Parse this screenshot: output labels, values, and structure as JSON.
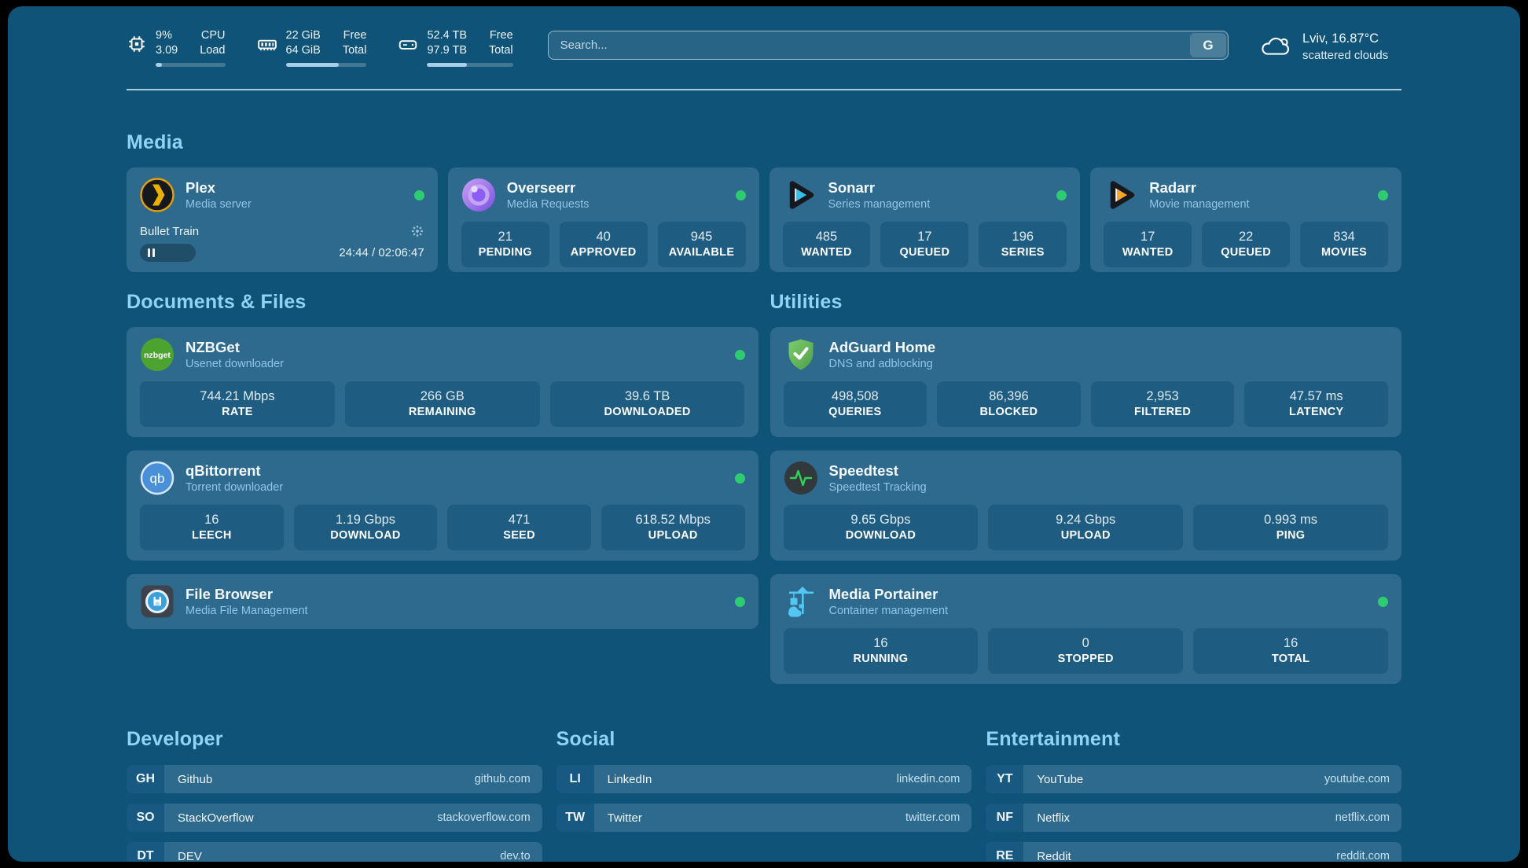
{
  "header": {
    "stats": [
      {
        "icon": "cpu-icon",
        "value1": "9%",
        "value2": "3.09",
        "label1": "CPU",
        "label2": "Load",
        "progress": 9
      },
      {
        "icon": "ram-icon",
        "value1": "22 GiB",
        "value2": "64 GiB",
        "label1": "Free",
        "label2": "Total",
        "progress": 66
      },
      {
        "icon": "disk-icon",
        "value1": "52.4 TB",
        "value2": "97.9 TB",
        "label1": "Free",
        "label2": "Total",
        "progress": 46
      }
    ],
    "search": {
      "placeholder": "Search...",
      "button": "G"
    },
    "weather": {
      "location": "Lviv, 16.87°C",
      "condition": "scattered clouds",
      "icon": "cloud-icon"
    }
  },
  "media": {
    "title": "Media",
    "plex": {
      "title": "Plex",
      "subtitle": "Media server",
      "icon": "plex-icon",
      "status": "online",
      "player": {
        "track": "Bullet Train",
        "time": "24:44 / 02:06:47",
        "progress": 19.5
      }
    },
    "overseerr": {
      "title": "Overseerr",
      "subtitle": "Media Requests",
      "icon": "overseerr-icon",
      "status": "online",
      "stats": [
        {
          "value": "21",
          "label": "PENDING"
        },
        {
          "value": "40",
          "label": "APPROVED"
        },
        {
          "value": "945",
          "label": "AVAILABLE"
        }
      ]
    },
    "sonarr": {
      "title": "Sonarr",
      "subtitle": "Series management",
      "icon": "sonarr-icon",
      "status": "online",
      "stats": [
        {
          "value": "485",
          "label": "WANTED"
        },
        {
          "value": "17",
          "label": "QUEUED"
        },
        {
          "value": "196",
          "label": "SERIES"
        }
      ]
    },
    "radarr": {
      "title": "Radarr",
      "subtitle": "Movie management",
      "icon": "radarr-icon",
      "status": "online",
      "stats": [
        {
          "value": "17",
          "label": "WANTED"
        },
        {
          "value": "22",
          "label": "QUEUED"
        },
        {
          "value": "834",
          "label": "MOVIES"
        }
      ]
    }
  },
  "documents": {
    "title": "Documents & Files",
    "nzbget": {
      "title": "NZBGet",
      "subtitle": "Usenet downloader",
      "icon": "nzbget-icon",
      "status": "online",
      "stats": [
        {
          "value": "744.21 Mbps",
          "label": "RATE"
        },
        {
          "value": "266 GB",
          "label": "REMAINING"
        },
        {
          "value": "39.6 TB",
          "label": "DOWNLOADED"
        }
      ]
    },
    "qbittorrent": {
      "title": "qBittorrent",
      "subtitle": "Torrent downloader",
      "icon": "qbittorrent-icon",
      "status": "online",
      "stats": [
        {
          "value": "16",
          "label": "LEECH"
        },
        {
          "value": "1.19 Gbps",
          "label": "DOWNLOAD"
        },
        {
          "value": "471",
          "label": "SEED"
        },
        {
          "value": "618.52 Mbps",
          "label": "UPLOAD"
        }
      ]
    },
    "filebrowser": {
      "title": "File Browser",
      "subtitle": "Media File Management",
      "icon": "filebrowser-icon",
      "status": "online"
    }
  },
  "utilities": {
    "title": "Utilities",
    "adguard": {
      "title": "AdGuard Home",
      "subtitle": "DNS and adblocking",
      "icon": "adguard-icon",
      "stats": [
        {
          "value": "498,508",
          "label": "QUERIES"
        },
        {
          "value": "86,396",
          "label": "BLOCKED"
        },
        {
          "value": "2,953",
          "label": "FILTERED"
        },
        {
          "value": "47.57 ms",
          "label": "LATENCY"
        }
      ]
    },
    "speedtest": {
      "title": "Speedtest",
      "subtitle": "Speedtest Tracking",
      "icon": "speedtest-icon",
      "stats": [
        {
          "value": "9.65 Gbps",
          "label": "DOWNLOAD"
        },
        {
          "value": "9.24 Gbps",
          "label": "UPLOAD"
        },
        {
          "value": "0.993 ms",
          "label": "PING"
        }
      ]
    },
    "portainer": {
      "title": "Media Portainer",
      "subtitle": "Container management",
      "icon": "portainer-icon",
      "status": "online",
      "stats": [
        {
          "value": "16",
          "label": "RUNNING"
        },
        {
          "value": "0",
          "label": "STOPPED"
        },
        {
          "value": "16",
          "label": "TOTAL"
        }
      ]
    }
  },
  "bookmarks": {
    "developer": {
      "title": "Developer",
      "items": [
        {
          "abbr": "GH",
          "name": "Github",
          "url": "github.com"
        },
        {
          "abbr": "SO",
          "name": "StackOverflow",
          "url": "stackoverflow.com"
        },
        {
          "abbr": "DT",
          "name": "DEV",
          "url": "dev.to"
        }
      ]
    },
    "social": {
      "title": "Social",
      "items": [
        {
          "abbr": "LI",
          "name": "LinkedIn",
          "url": "linkedin.com"
        },
        {
          "abbr": "TW",
          "name": "Twitter",
          "url": "twitter.com"
        }
      ]
    },
    "entertainment": {
      "title": "Entertainment",
      "items": [
        {
          "abbr": "YT",
          "name": "YouTube",
          "url": "youtube.com"
        },
        {
          "abbr": "NF",
          "name": "Netflix",
          "url": "netflix.com"
        },
        {
          "abbr": "RE",
          "name": "Reddit",
          "url": "reddit.com"
        }
      ]
    }
  },
  "colors": {
    "background": "#0f5378",
    "card": "#2d6a8e",
    "tile": "#1e5d81",
    "accent": "#8fd4f5",
    "status_online": "#2ecc71"
  }
}
